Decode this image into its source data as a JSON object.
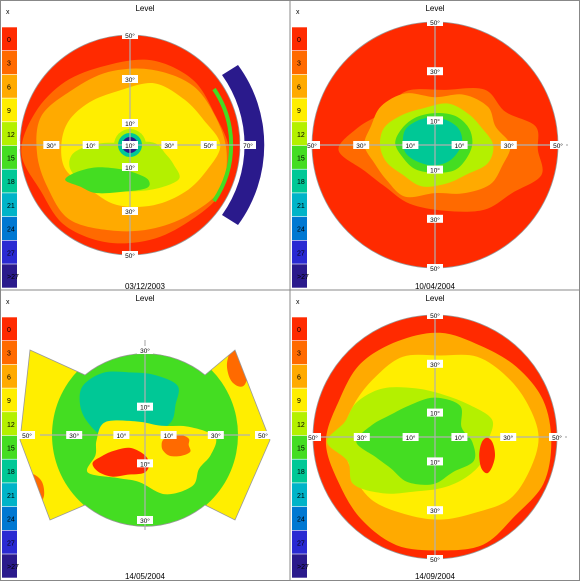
{
  "legend": {
    "title": "Level",
    "unit": "x",
    "levels": [
      "0",
      "3",
      "6",
      "9",
      "12",
      "15",
      "18",
      "21",
      "24",
      "27",
      ">27"
    ],
    "colors": [
      "#ff2a00",
      "#ff6a00",
      "#ffaa00",
      "#ffee00",
      "#b4f000",
      "#44dd22",
      "#00c896",
      "#00b4c8",
      "#0078d2",
      "#2a2ad2",
      "#2a1a8c"
    ]
  },
  "chart_data": [
    {
      "type": "heatmap",
      "title": "Level",
      "date": "03/12/2003",
      "shape": "circle",
      "axis_labels_x": [
        "50°",
        "30°",
        "10°",
        "10°",
        "30°",
        "50°",
        "70°"
      ],
      "axis_labels_y": [
        "50°",
        "30°",
        "10°",
        "10°",
        "30°",
        "50°"
      ],
      "background_level": "6",
      "features": [
        {
          "desc": "outer ring",
          "level": "0"
        },
        {
          "desc": "center spot",
          "level": ">27"
        },
        {
          "desc": "right wedge",
          "level": ">27"
        }
      ]
    },
    {
      "type": "heatmap",
      "title": "Level",
      "date": "10/04/2004",
      "shape": "circle",
      "axis_labels_x": [
        "50°",
        "30°",
        "10°",
        "10°",
        "30°",
        "50°"
      ],
      "axis_labels_y": [
        "50°",
        "30°",
        "10°",
        "10°",
        "30°",
        "50°"
      ],
      "background_level": "0",
      "features": [
        {
          "desc": "center blob",
          "level": "18"
        }
      ]
    },
    {
      "type": "heatmap",
      "title": "Level",
      "date": "14/05/2004",
      "shape": "bowtie",
      "axis_labels_x": [
        "50°",
        "30°",
        "10°",
        "10°",
        "30°",
        "50°"
      ],
      "axis_labels_y": [
        "30°",
        "10°",
        "10°",
        "30°"
      ],
      "background_level": "15",
      "features": [
        {
          "desc": "center blob",
          "level": "18"
        }
      ]
    },
    {
      "type": "heatmap",
      "title": "Level",
      "date": "14/09/2004",
      "shape": "circle",
      "axis_labels_x": [
        "50°",
        "30°",
        "10°",
        "10°",
        "30°",
        "50°"
      ],
      "axis_labels_y": [
        "50°",
        "30°",
        "10°",
        "10°",
        "30°",
        "50°"
      ],
      "background_level": "9",
      "features": [
        {
          "desc": "center blob",
          "level": "15"
        }
      ]
    }
  ]
}
